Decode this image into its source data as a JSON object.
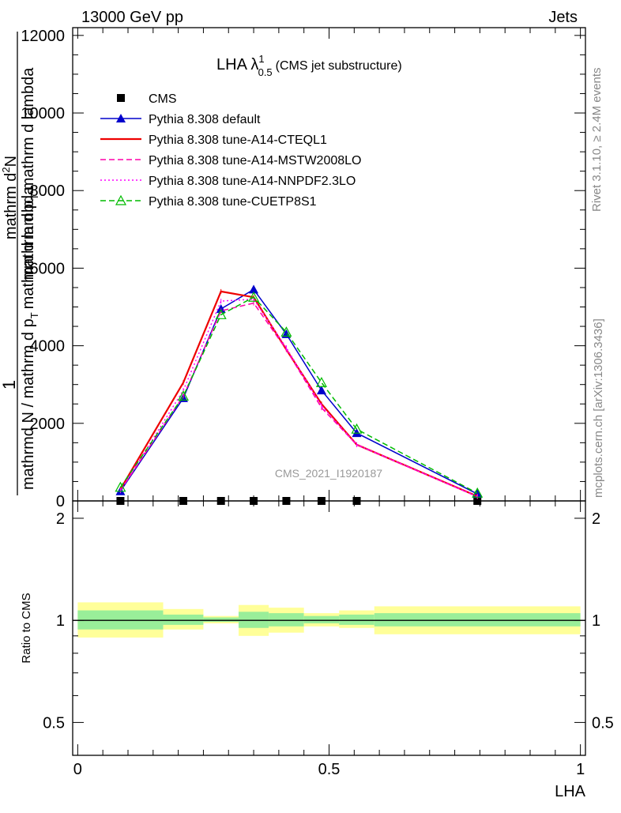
{
  "header": {
    "left": "13000 GeV pp",
    "right": "Jets"
  },
  "side_labels": {
    "rivet": "Rivet 3.1.10, ≥ 2.4M events",
    "mcplots": "mcplots.cern.ch [arXiv:1306.3436]"
  },
  "chart_data": [
    {
      "type": "line",
      "panel": "main",
      "title_main": "LHA λ",
      "title_sup": "1",
      "title_sub": "0.5",
      "title_note": "(CMS jet substructure)",
      "watermark": "CMS_2021_I1920187",
      "ylabel_top": "1",
      "ylabel_bottom": "mathrmd N / mathrm d p",
      "ylabel_bottom_sub": "T",
      "ylabel_bottom_tail": "mathrm d lambda",
      "ylabel_num": "mathrm d",
      "ylabel_num_sup": "2",
      "ylabel_num_tail": "N",
      "ylabel_den": "mathrm d p",
      "ylabel_den_sub": "T",
      "ylabel_den_tail": "mathrm d lambda",
      "ylim": [
        0,
        12200
      ],
      "xlim": [
        -0.01,
        1.01
      ],
      "ytick_labels": [
        "0",
        "2000",
        "4000",
        "6000",
        "8000",
        "10000",
        "12000"
      ],
      "ytick_values": [
        0,
        2000,
        4000,
        6000,
        8000,
        10000,
        12000
      ],
      "legend_position": "top-left",
      "series": [
        {
          "name": "CMS",
          "style": "data",
          "color": "#000000",
          "marker": "square",
          "x": [
            0.085,
            0.21,
            0.285,
            0.35,
            0.415,
            0.485,
            0.555,
            0.795
          ],
          "y": [
            0,
            0,
            0,
            0,
            0,
            0,
            0,
            0
          ]
        },
        {
          "name": "Pythia 8.308 default",
          "style": "solid",
          "color": "#0000cc",
          "marker": "triangle",
          "x": [
            0.085,
            0.21,
            0.285,
            0.35,
            0.415,
            0.485,
            0.555,
            0.795
          ],
          "y": [
            250,
            2650,
            4950,
            5450,
            4300,
            2850,
            1750,
            180
          ]
        },
        {
          "name": "Pythia 8.308 tune-A14-CTEQL1",
          "style": "solid",
          "color": "#ee0000",
          "marker": "none",
          "x": [
            0.085,
            0.21,
            0.285,
            0.35,
            0.415,
            0.485,
            0.555,
            0.795
          ],
          "y": [
            300,
            3050,
            5400,
            5250,
            3900,
            2500,
            1450,
            120
          ]
        },
        {
          "name": "Pythia 8.308 tune-A14-MSTW2008LO",
          "style": "dashed",
          "color": "#ff00aa",
          "marker": "none",
          "x": [
            0.085,
            0.21,
            0.285,
            0.35,
            0.415,
            0.485,
            0.555,
            0.795
          ],
          "y": [
            270,
            2700,
            4900,
            5100,
            3900,
            2400,
            1450,
            110
          ]
        },
        {
          "name": "Pythia 8.308 tune-A14-NNPDF2.3LO",
          "style": "dotted",
          "color": "#ff00ff",
          "marker": "none",
          "x": [
            0.085,
            0.21,
            0.285,
            0.35,
            0.415,
            0.485,
            0.555,
            0.795
          ],
          "y": [
            260,
            2850,
            5150,
            5200,
            3950,
            2450,
            1450,
            115
          ]
        },
        {
          "name": "Pythia 8.308 tune-CUETP8S1",
          "style": "dashed",
          "color": "#00bb00",
          "marker": "triangle-open",
          "x": [
            0.085,
            0.21,
            0.285,
            0.35,
            0.415,
            0.485,
            0.555,
            0.795
          ],
          "y": [
            350,
            2700,
            4800,
            5250,
            4350,
            3050,
            1850,
            200
          ]
        }
      ]
    },
    {
      "type": "area",
      "panel": "ratio",
      "ylabel": "Ratio to CMS",
      "xlabel": "LHA",
      "ylim": [
        0.4,
        2.25
      ],
      "xlim": [
        -0.01,
        1.01
      ],
      "ytick_labels": [
        "0.5",
        "1",
        "2"
      ],
      "ytick_values": [
        0.5,
        1,
        2
      ],
      "xtick_labels": [
        "0",
        "0.5",
        "1"
      ],
      "xtick_values": [
        0,
        0.5,
        1
      ],
      "reference_line": 1,
      "band_colors": {
        "stat": "#99ee99",
        "total": "#ffff99"
      },
      "bins": [
        {
          "lo": 0.0,
          "hi": 0.17,
          "total": [
            0.89,
            1.13
          ],
          "stat": [
            0.94,
            1.07
          ]
        },
        {
          "lo": 0.17,
          "hi": 0.25,
          "total": [
            0.94,
            1.08
          ],
          "stat": [
            0.97,
            1.04
          ]
        },
        {
          "lo": 0.25,
          "hi": 0.32,
          "total": [
            0.98,
            1.03
          ],
          "stat": [
            0.99,
            1.02
          ]
        },
        {
          "lo": 0.32,
          "hi": 0.38,
          "total": [
            0.9,
            1.11
          ],
          "stat": [
            0.95,
            1.06
          ]
        },
        {
          "lo": 0.38,
          "hi": 0.45,
          "total": [
            0.92,
            1.09
          ],
          "stat": [
            0.96,
            1.05
          ]
        },
        {
          "lo": 0.45,
          "hi": 0.52,
          "total": [
            0.96,
            1.05
          ],
          "stat": [
            0.98,
            1.03
          ]
        },
        {
          "lo": 0.52,
          "hi": 0.59,
          "total": [
            0.95,
            1.07
          ],
          "stat": [
            0.97,
            1.04
          ]
        },
        {
          "lo": 0.59,
          "hi": 1.0,
          "total": [
            0.91,
            1.1
          ],
          "stat": [
            0.96,
            1.05
          ]
        }
      ]
    }
  ]
}
